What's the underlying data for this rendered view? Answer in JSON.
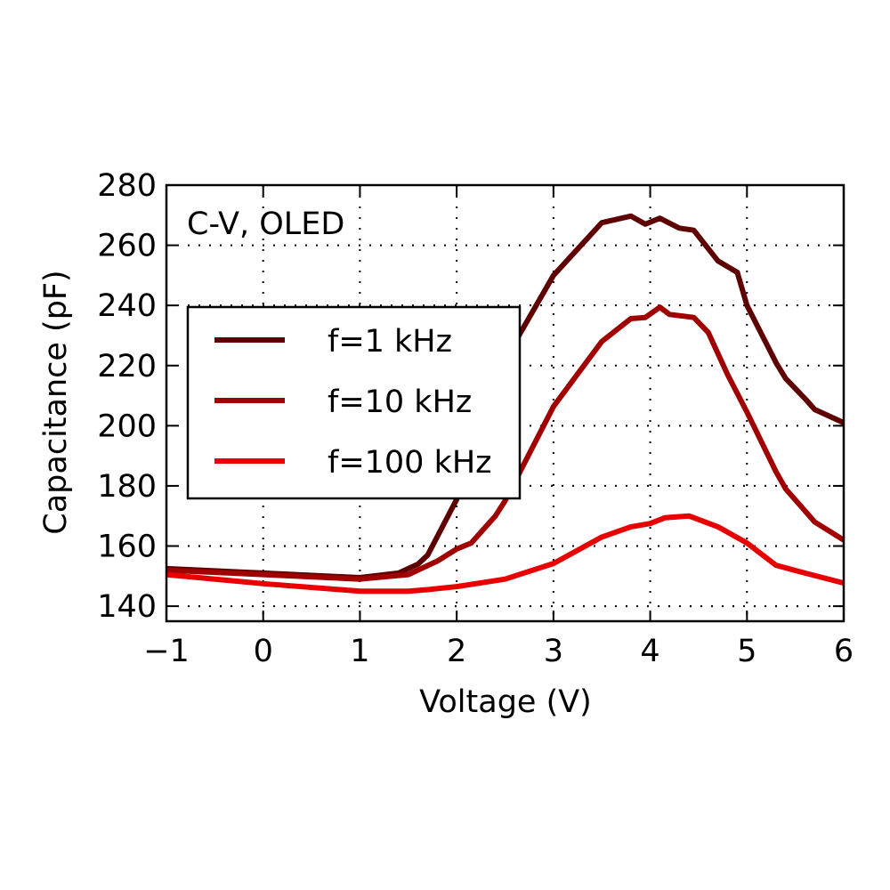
{
  "chart_data": {
    "type": "line",
    "title": "",
    "annotation": "C-V, OLED",
    "xlabel": "Voltage (V)",
    "ylabel": "Capacitance (pF)",
    "xlim": [
      -1,
      6
    ],
    "ylim": [
      135,
      280
    ],
    "xticks": [
      -1,
      0,
      1,
      2,
      3,
      4,
      5,
      6
    ],
    "xtick_labels": [
      "−1",
      "0",
      "1",
      "2",
      "3",
      "4",
      "5",
      "6"
    ],
    "yticks": [
      140,
      160,
      180,
      200,
      220,
      240,
      260,
      280
    ],
    "ytick_labels": [
      "140",
      "160",
      "180",
      "200",
      "220",
      "240",
      "260",
      "280"
    ],
    "grid": true,
    "legend_placement": "center-left",
    "series": [
      {
        "name": "f=1 kHz",
        "color": "#5e0000",
        "x": [
          -1,
          0,
          1,
          1.4,
          1.6,
          1.7,
          2.0,
          2.5,
          3.0,
          3.5,
          3.8,
          3.95,
          4.1,
          4.3,
          4.45,
          4.7,
          4.9,
          5.0,
          5.3,
          5.4,
          5.6,
          5.7,
          6.0
        ],
        "y": [
          152.5,
          151,
          149.5,
          151,
          154,
          157,
          175.5,
          222,
          250,
          267.5,
          269.7,
          267,
          269,
          265.7,
          265,
          254.8,
          251,
          240,
          221,
          215.7,
          209,
          205.4,
          201
        ]
      },
      {
        "name": "f=10 kHz",
        "color": "#a00000",
        "x": [
          -1,
          0,
          1,
          1.5,
          1.8,
          2.0,
          2.15,
          2.4,
          2.5,
          3.0,
          3.5,
          3.8,
          3.95,
          4.1,
          4.2,
          4.45,
          4.6,
          4.8,
          5.0,
          5.3,
          5.4,
          5.7,
          6.0
        ],
        "y": [
          152,
          150.5,
          149,
          150.5,
          155,
          159,
          161,
          170,
          175,
          206.4,
          228,
          235.6,
          236,
          239.4,
          237,
          236,
          231,
          217,
          204.5,
          184.7,
          179,
          168,
          162
        ]
      },
      {
        "name": "f=100 kHz",
        "color": "#e80000",
        "x": [
          -1,
          0,
          1,
          1.5,
          1.7,
          2.0,
          2.5,
          3.0,
          3.5,
          3.8,
          4.0,
          4.15,
          4.4,
          4.7,
          5.0,
          5.3,
          5.6,
          6.0
        ],
        "y": [
          150.5,
          147.5,
          145,
          145,
          145.5,
          146.5,
          149,
          154.2,
          163,
          166.4,
          167.5,
          169.4,
          170,
          166.4,
          161,
          153.6,
          151,
          147.7
        ]
      }
    ]
  }
}
